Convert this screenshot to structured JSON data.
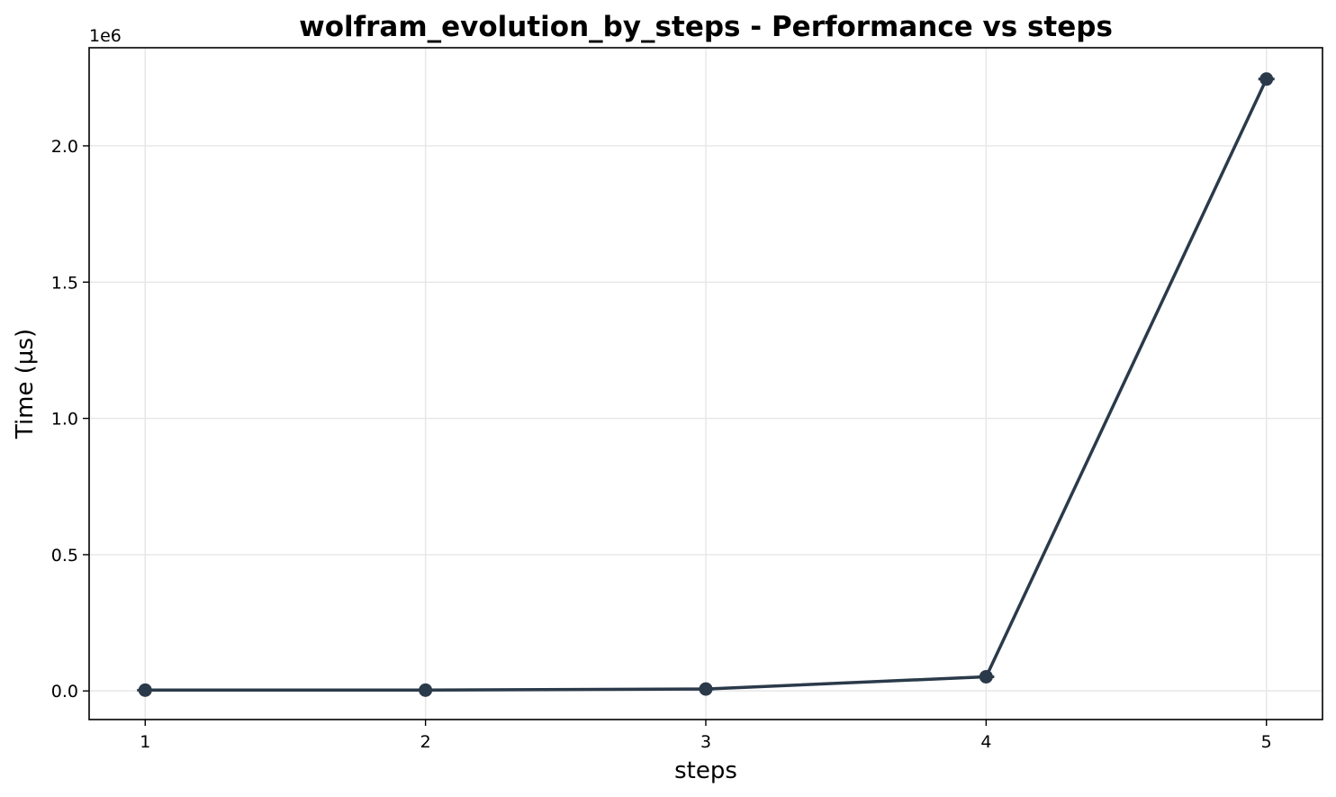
{
  "chart_data": {
    "type": "line",
    "title": "wolfram_evolution_by_steps - Performance vs steps",
    "xlabel": "steps",
    "ylabel": "Time (µs)",
    "offset_text": "1e6",
    "x": [
      1,
      2,
      3,
      4,
      5
    ],
    "x_tick_labels": [
      "1",
      "2",
      "3",
      "4",
      "5"
    ],
    "y_ticks": [
      0,
      500000,
      1000000,
      1500000,
      2000000
    ],
    "y_tick_labels": [
      "0.0",
      "0.5",
      "1.0",
      "1.5",
      "2.0"
    ],
    "xlim": [
      0.8,
      5.2
    ],
    "ylim": [
      -105000,
      2360000
    ],
    "grid": true,
    "series": [
      {
        "values": [
          3000,
          3000,
          7000,
          52000,
          2245000
        ],
        "color": "#2b3a4a"
      }
    ]
  }
}
